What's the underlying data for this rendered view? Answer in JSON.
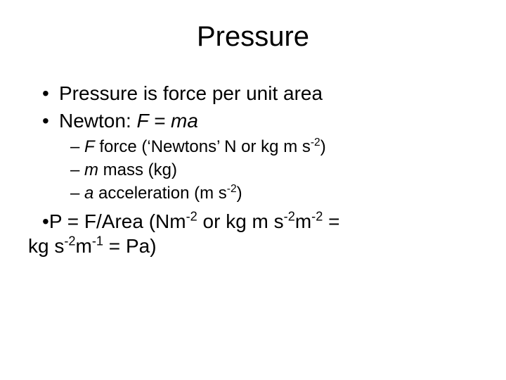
{
  "title": "Pressure",
  "bullets": {
    "b1": {
      "text": "Pressure is force per unit area"
    },
    "b2": {
      "prefix": "Newton: ",
      "formula": "F = ma"
    },
    "sub1": {
      "var": "F",
      "rest_a": " force (‘Newtons’ N or kg m s",
      "sup": "-2",
      "rest_b": ")"
    },
    "sub2": {
      "var": "m",
      "rest": " mass (kg)"
    },
    "sub3": {
      "var": "a",
      "rest_a": " acceleration (m s",
      "sup": "-2",
      "rest_b": ")"
    },
    "b3": {
      "line1_a": "P = F/Area (Nm",
      "sup1": "-2",
      "line1_b": " or kg m s",
      "sup2": "-2",
      "line1_c": "m",
      "sup3": "-2",
      "line1_d": " =",
      "line2_a": "kg s",
      "sup4": "-2",
      "line2_b": "m",
      "sup5": "-1",
      "line2_c": " = Pa)"
    }
  },
  "markers": {
    "dot": "•",
    "dash": "–"
  },
  "style": {
    "background_color": "#ffffff",
    "text_color": "#000000",
    "title_fontsize": 40,
    "bullet_l1_fontsize": 28,
    "bullet_l2_fontsize": 24,
    "font_family": "Arial"
  }
}
